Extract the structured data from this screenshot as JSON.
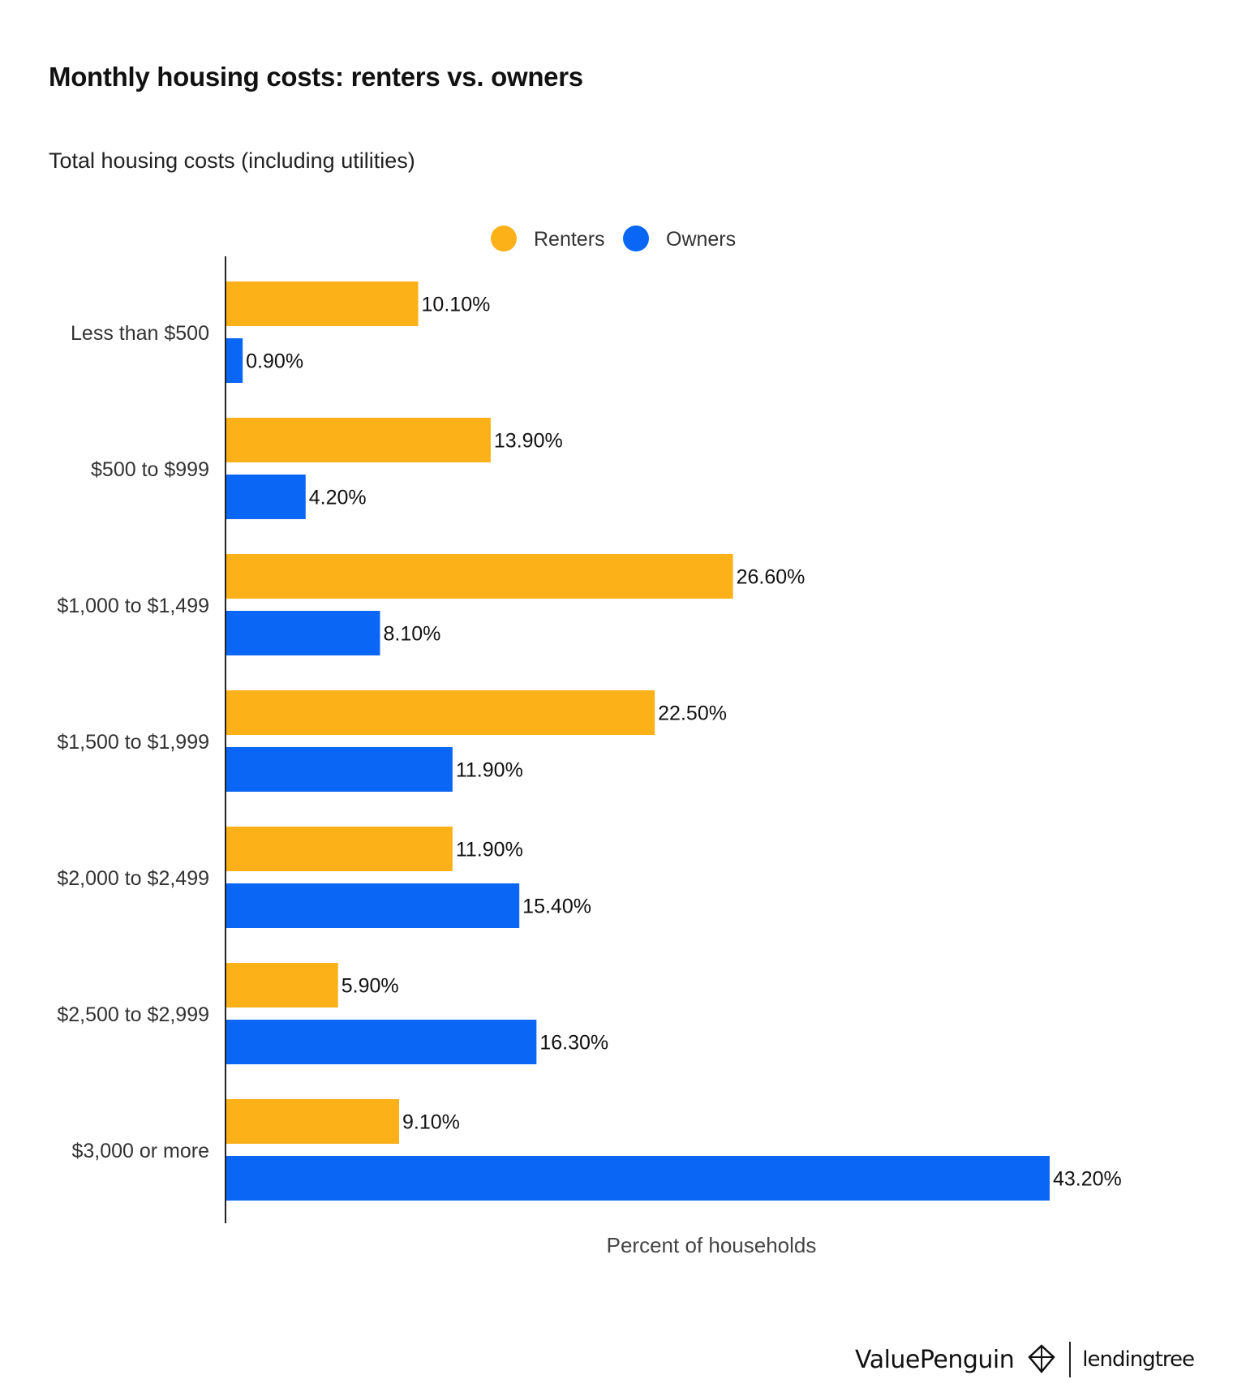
{
  "title": "Monthly housing costs: renters vs. owners",
  "subtitle": "Total housing costs (including utilities)",
  "footer": {
    "brand_left": "ValuePenguin",
    "brand_right": "lendingtree"
  },
  "colors": {
    "renters": "#FBB117",
    "owners": "#0A66F5"
  },
  "chart_data": {
    "type": "bar",
    "orientation": "horizontal",
    "categories": [
      "Less than $500",
      "$500 to $999",
      "$1,000 to $1,499",
      "$1,500 to $1,999",
      "$2,000 to $2,499",
      "$2,500 to $2,999",
      "$3,000 or more"
    ],
    "series": [
      {
        "name": "Renters",
        "values": [
          10.1,
          13.9,
          26.6,
          22.5,
          11.9,
          5.9,
          9.1
        ],
        "labels": [
          "10.10%",
          "13.90%",
          "26.60%",
          "22.50%",
          "11.90%",
          "5.90%",
          "9.10%"
        ]
      },
      {
        "name": "Owners",
        "values": [
          0.9,
          4.2,
          8.1,
          11.9,
          15.4,
          16.3,
          43.2
        ],
        "labels": [
          "0.90%",
          "4.20%",
          "8.10%",
          "11.90%",
          "15.40%",
          "16.30%",
          "43.20%"
        ]
      }
    ],
    "xlabel": "Percent of households",
    "ylabel": "",
    "xlim": [
      0,
      46
    ],
    "grid": false,
    "legend": "top-center"
  }
}
